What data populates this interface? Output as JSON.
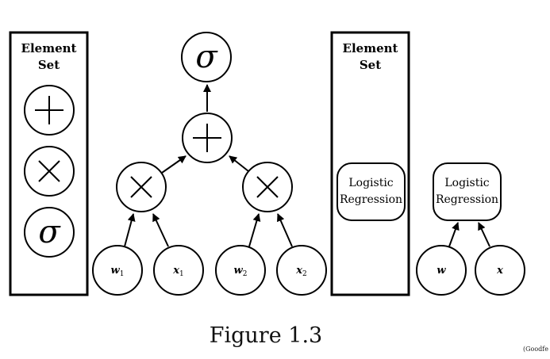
{
  "left_set": {
    "title_line1": "Element",
    "title_line2": "Set"
  },
  "right_set": {
    "title_line1": "Element",
    "title_line2": "Set"
  },
  "ops": {
    "sigma": "σ"
  },
  "left_graph": {
    "inputs": [
      {
        "base": "w",
        "sub": "1"
      },
      {
        "base": "x",
        "sub": "1"
      },
      {
        "base": "w",
        "sub": "2"
      },
      {
        "base": "x",
        "sub": "2"
      }
    ]
  },
  "logistic": {
    "line1": "Logistic",
    "line2": "Regression"
  },
  "right_graph": {
    "inputs": [
      {
        "base": "w"
      },
      {
        "base": "x"
      }
    ]
  },
  "caption": "Figure 1.3",
  "credit": "(Goodfe"
}
